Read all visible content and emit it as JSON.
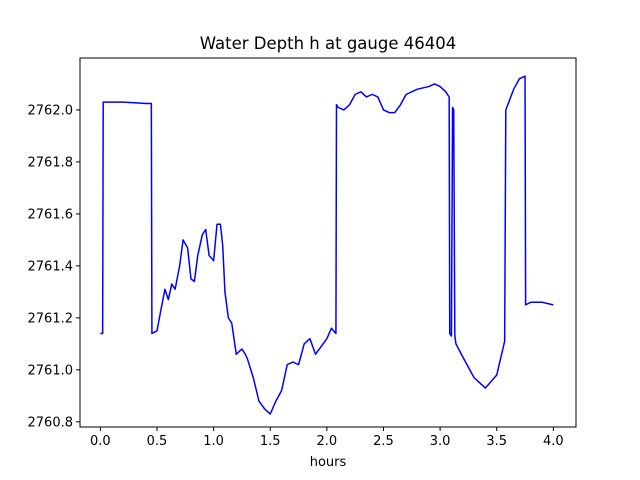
{
  "chart_data": {
    "type": "line",
    "title": "Water Depth h at gauge 46404",
    "xlabel": "hours",
    "ylabel": "",
    "xlim": [
      -0.18,
      4.2
    ],
    "ylim": [
      2760.78,
      2762.2
    ],
    "xticks": [
      0.0,
      0.5,
      1.0,
      1.5,
      2.0,
      2.5,
      3.0,
      3.5,
      4.0
    ],
    "xtick_labels": [
      "0.0",
      "0.5",
      "1.0",
      "1.5",
      "2.0",
      "2.5",
      "3.0",
      "3.5",
      "4.0"
    ],
    "yticks": [
      2760.8,
      2761.0,
      2761.2,
      2761.4,
      2761.6,
      2761.8,
      2762.0
    ],
    "ytick_labels": [
      "2760.8",
      "2761.0",
      "2761.2",
      "2761.4",
      "2761.6",
      "2761.8",
      "2762.0"
    ],
    "grid": false,
    "line_color": "#0000ff",
    "series": [
      {
        "x": [
          0.0,
          0.02,
          0.025,
          0.1,
          0.2,
          0.3,
          0.4,
          0.45,
          0.455,
          0.5,
          0.53,
          0.57,
          0.6,
          0.63,
          0.66,
          0.7,
          0.73,
          0.77,
          0.8,
          0.83,
          0.86,
          0.9,
          0.93,
          0.96,
          1.0,
          1.03,
          1.06,
          1.08,
          1.1,
          1.13,
          1.16,
          1.2,
          1.25,
          1.28,
          1.3,
          1.35,
          1.4,
          1.45,
          1.5,
          1.55,
          1.6,
          1.65,
          1.7,
          1.75,
          1.8,
          1.85,
          1.9,
          1.95,
          2.0,
          2.04,
          2.08,
          2.085,
          2.1,
          2.15,
          2.2,
          2.25,
          2.3,
          2.35,
          2.4,
          2.45,
          2.5,
          2.55,
          2.6,
          2.65,
          2.7,
          2.8,
          2.9,
          2.95,
          3.0,
          3.05,
          3.08,
          3.085,
          3.1,
          3.11,
          3.12,
          3.13,
          3.14,
          3.2,
          3.3,
          3.4,
          3.5,
          3.57,
          3.58,
          3.65,
          3.7,
          3.75,
          3.755,
          3.8,
          3.9,
          4.0
        ],
        "y": [
          2761.14,
          2761.14,
          2762.03,
          2762.03,
          2762.03,
          2762.028,
          2762.025,
          2762.025,
          2761.14,
          2761.15,
          2761.22,
          2761.31,
          2761.27,
          2761.33,
          2761.31,
          2761.4,
          2761.5,
          2761.47,
          2761.35,
          2761.34,
          2761.44,
          2761.52,
          2761.54,
          2761.44,
          2761.42,
          2761.56,
          2761.56,
          2761.48,
          2761.3,
          2761.2,
          2761.18,
          2761.06,
          2761.08,
          2761.06,
          2761.04,
          2760.97,
          2760.88,
          2760.85,
          2760.83,
          2760.88,
          2760.92,
          2761.02,
          2761.03,
          2761.02,
          2761.1,
          2761.12,
          2761.06,
          2761.09,
          2761.12,
          2761.16,
          2761.14,
          2762.02,
          2762.01,
          2762.0,
          2762.02,
          2762.06,
          2762.07,
          2762.05,
          2762.06,
          2762.05,
          2762.0,
          2761.99,
          2761.99,
          2762.02,
          2762.06,
          2762.08,
          2762.09,
          2762.1,
          2762.09,
          2762.07,
          2762.05,
          2761.14,
          2761.13,
          2762.01,
          2762.0,
          2761.13,
          2761.1,
          2761.05,
          2760.97,
          2760.93,
          2760.98,
          2761.11,
          2762.0,
          2762.08,
          2762.12,
          2762.13,
          2761.25,
          2761.26,
          2761.26,
          2761.25
        ]
      }
    ]
  }
}
